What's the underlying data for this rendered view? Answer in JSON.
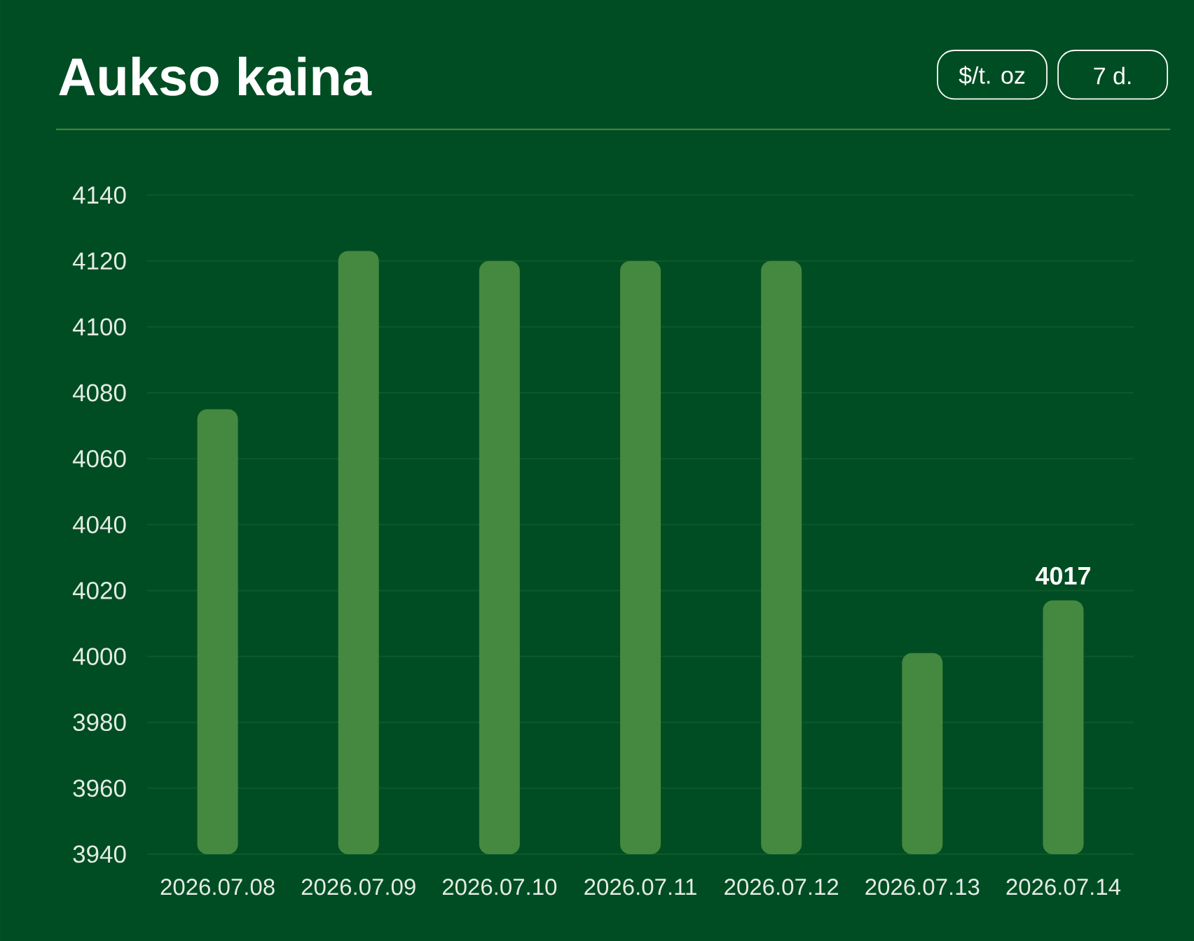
{
  "chart_data": {
    "type": "bar",
    "title": "Aukso kaina",
    "annotations": [
      "$/t. oz",
      "7 d."
    ],
    "categories": [
      "2026.07.08",
      "2026.07.09",
      "2026.07.10",
      "2026.07.11",
      "2026.07.12",
      "2026.07.13",
      "2026.07.14"
    ],
    "values": [
      4075,
      4123,
      4120,
      4120,
      4120,
      4001,
      4017
    ],
    "value_labels": [
      null,
      null,
      null,
      null,
      null,
      null,
      "4017"
    ],
    "color": "#45883f",
    "ylim": [
      3940,
      4140
    ],
    "yticks": [
      3940,
      3960,
      3980,
      4000,
      4020,
      4040,
      4060,
      4080,
      4100,
      4120,
      4140
    ],
    "grid": "y"
  }
}
